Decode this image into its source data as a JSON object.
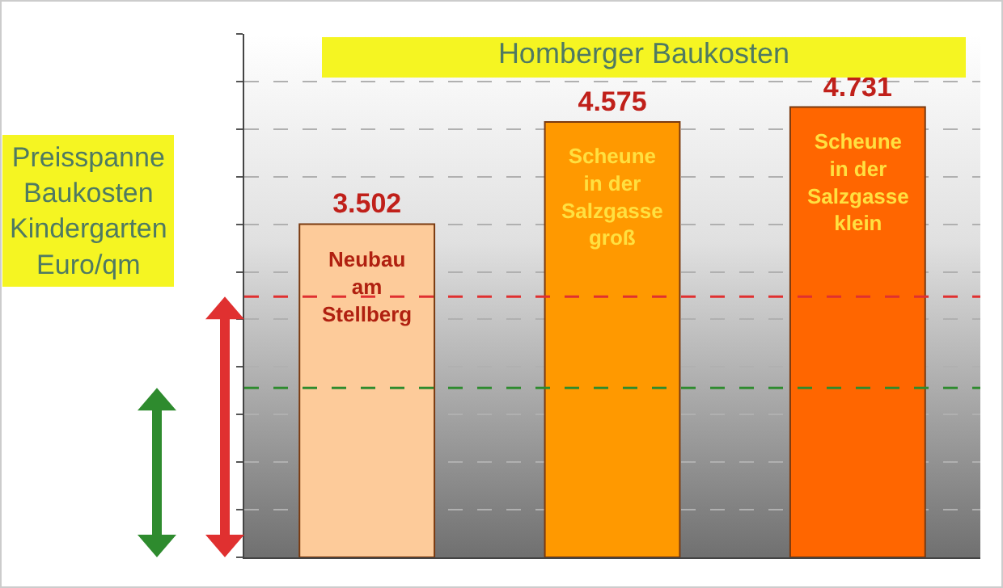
{
  "chart_data": {
    "type": "bar",
    "title": "Homberger Baukosten",
    "ylabel": "Preisspanne Baukosten Kindergarten Euro/qm",
    "categories": [
      "Neubau am Stellberg",
      "Scheune in der Salzgasse groß",
      "Scheune in der Salzgasse klein"
    ],
    "values": [
      3502,
      4575,
      4731
    ],
    "colors": [
      "#fdcb9a",
      "#ff9900",
      "#ff6600"
    ],
    "value_labels": [
      "3.502",
      "4.575",
      "4.731"
    ],
    "ylim": [
      0,
      5500
    ],
    "yticks": [
      {
        "value": 0,
        "label": null
      },
      {
        "value": 500,
        "label": null
      },
      {
        "value": 1000,
        "label": null
      },
      {
        "value": 1500,
        "label": null
      },
      {
        "value": 2000,
        "label": null
      },
      {
        "value": 2500,
        "label": null
      },
      {
        "value": 3000,
        "label": null
      },
      {
        "value": 3500,
        "label": null
      },
      {
        "value": 4000,
        "label": null
      },
      {
        "value": 4500,
        "label": null
      },
      {
        "value": 5000,
        "label": null
      },
      {
        "value": 5500,
        "label": null
      }
    ],
    "ref_lines": [
      {
        "axis": "y",
        "value": 2740,
        "color": "#e03030",
        "line_style": "dashed"
      },
      {
        "axis": "y",
        "value": 1780,
        "color": "#2e8b2e",
        "line_style": "dashed"
      }
    ],
    "grid": "y"
  }
}
